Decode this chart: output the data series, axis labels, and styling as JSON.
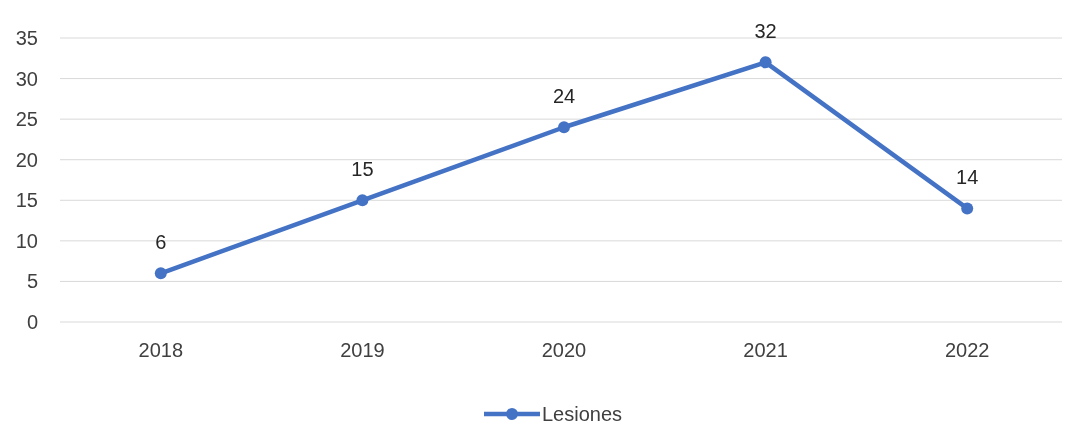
{
  "chart_data": {
    "type": "line",
    "categories": [
      "2018",
      "2019",
      "2020",
      "2021",
      "2022"
    ],
    "series": [
      {
        "name": "Lesiones",
        "color": "#4472c4",
        "values": [
          6,
          15,
          24,
          32,
          14
        ]
      }
    ],
    "ylim": [
      0,
      35
    ],
    "yticks": [
      0,
      5,
      10,
      15,
      20,
      25,
      30,
      35
    ],
    "grid": "y",
    "legend": "bottom",
    "data_labels": true,
    "marker": "circle",
    "line_style": "solid"
  }
}
